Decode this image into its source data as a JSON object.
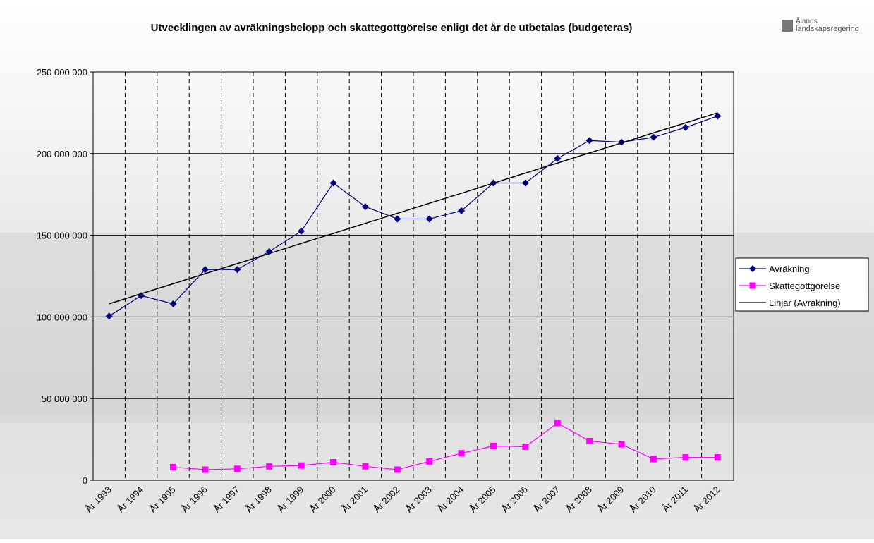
{
  "chart_data": {
    "type": "line",
    "title": "Utvecklingen av avräkningsbelopp och skattegottgörelse enligt det år de utbetalas (budgeteras)",
    "logo": [
      "Ålands",
      "landskapsregering"
    ],
    "categories": [
      "År 1993",
      "År 1994",
      "År 1995",
      "År 1996",
      "År 1997",
      "År 1998",
      "År 1999",
      "År 2000",
      "År 2001",
      "År 2002",
      "År 2003",
      "År 2004",
      "År 2005",
      "År 2006",
      "År 2007",
      "År 2008",
      "År 2009",
      "År 2010",
      "År 2011",
      "År 2012"
    ],
    "series": [
      {
        "name": "Avräkning",
        "color": "#000080",
        "marker": "diamond",
        "values": [
          100500000,
          113000000,
          108000000,
          129000000,
          129000000,
          140000000,
          152500000,
          182000000,
          167500000,
          160000000,
          160000000,
          165000000,
          182000000,
          182000000,
          197000000,
          208000000,
          207000000,
          210000000,
          216000000,
          223000000
        ]
      },
      {
        "name": "Skattegottgörelse",
        "color": "#ff00ff",
        "marker": "square",
        "values": [
          null,
          null,
          8000000,
          6500000,
          7000000,
          8500000,
          9000000,
          11000000,
          8500000,
          6500000,
          11500000,
          16500000,
          21000000,
          20500000,
          35000000,
          24000000,
          22000000,
          13000000,
          14000000,
          14000000
        ]
      },
      {
        "name": "Linjär (Avräkning)",
        "color": "#000000",
        "marker": "none",
        "values": [
          108000000,
          114200000,
          120300000,
          126500000,
          132600000,
          138800000,
          145000000,
          151100000,
          157300000,
          163400000,
          169600000,
          175700000,
          181900000,
          188100000,
          194200000,
          200400000,
          206500000,
          212700000,
          218800000,
          225000000
        ]
      }
    ],
    "ylim": [
      0,
      250000000
    ],
    "yticks": [
      0,
      {
        "value": 50000000,
        "label": "50 000 000"
      },
      {
        "value": 100000000,
        "label": "100 000 000"
      },
      {
        "value": 150000000,
        "label": "150 000 000"
      },
      {
        "value": 200000000,
        "label": "200 000 000"
      },
      {
        "value": 250000000,
        "label": "250 000 000"
      }
    ],
    "grid": true,
    "legend": "right"
  }
}
